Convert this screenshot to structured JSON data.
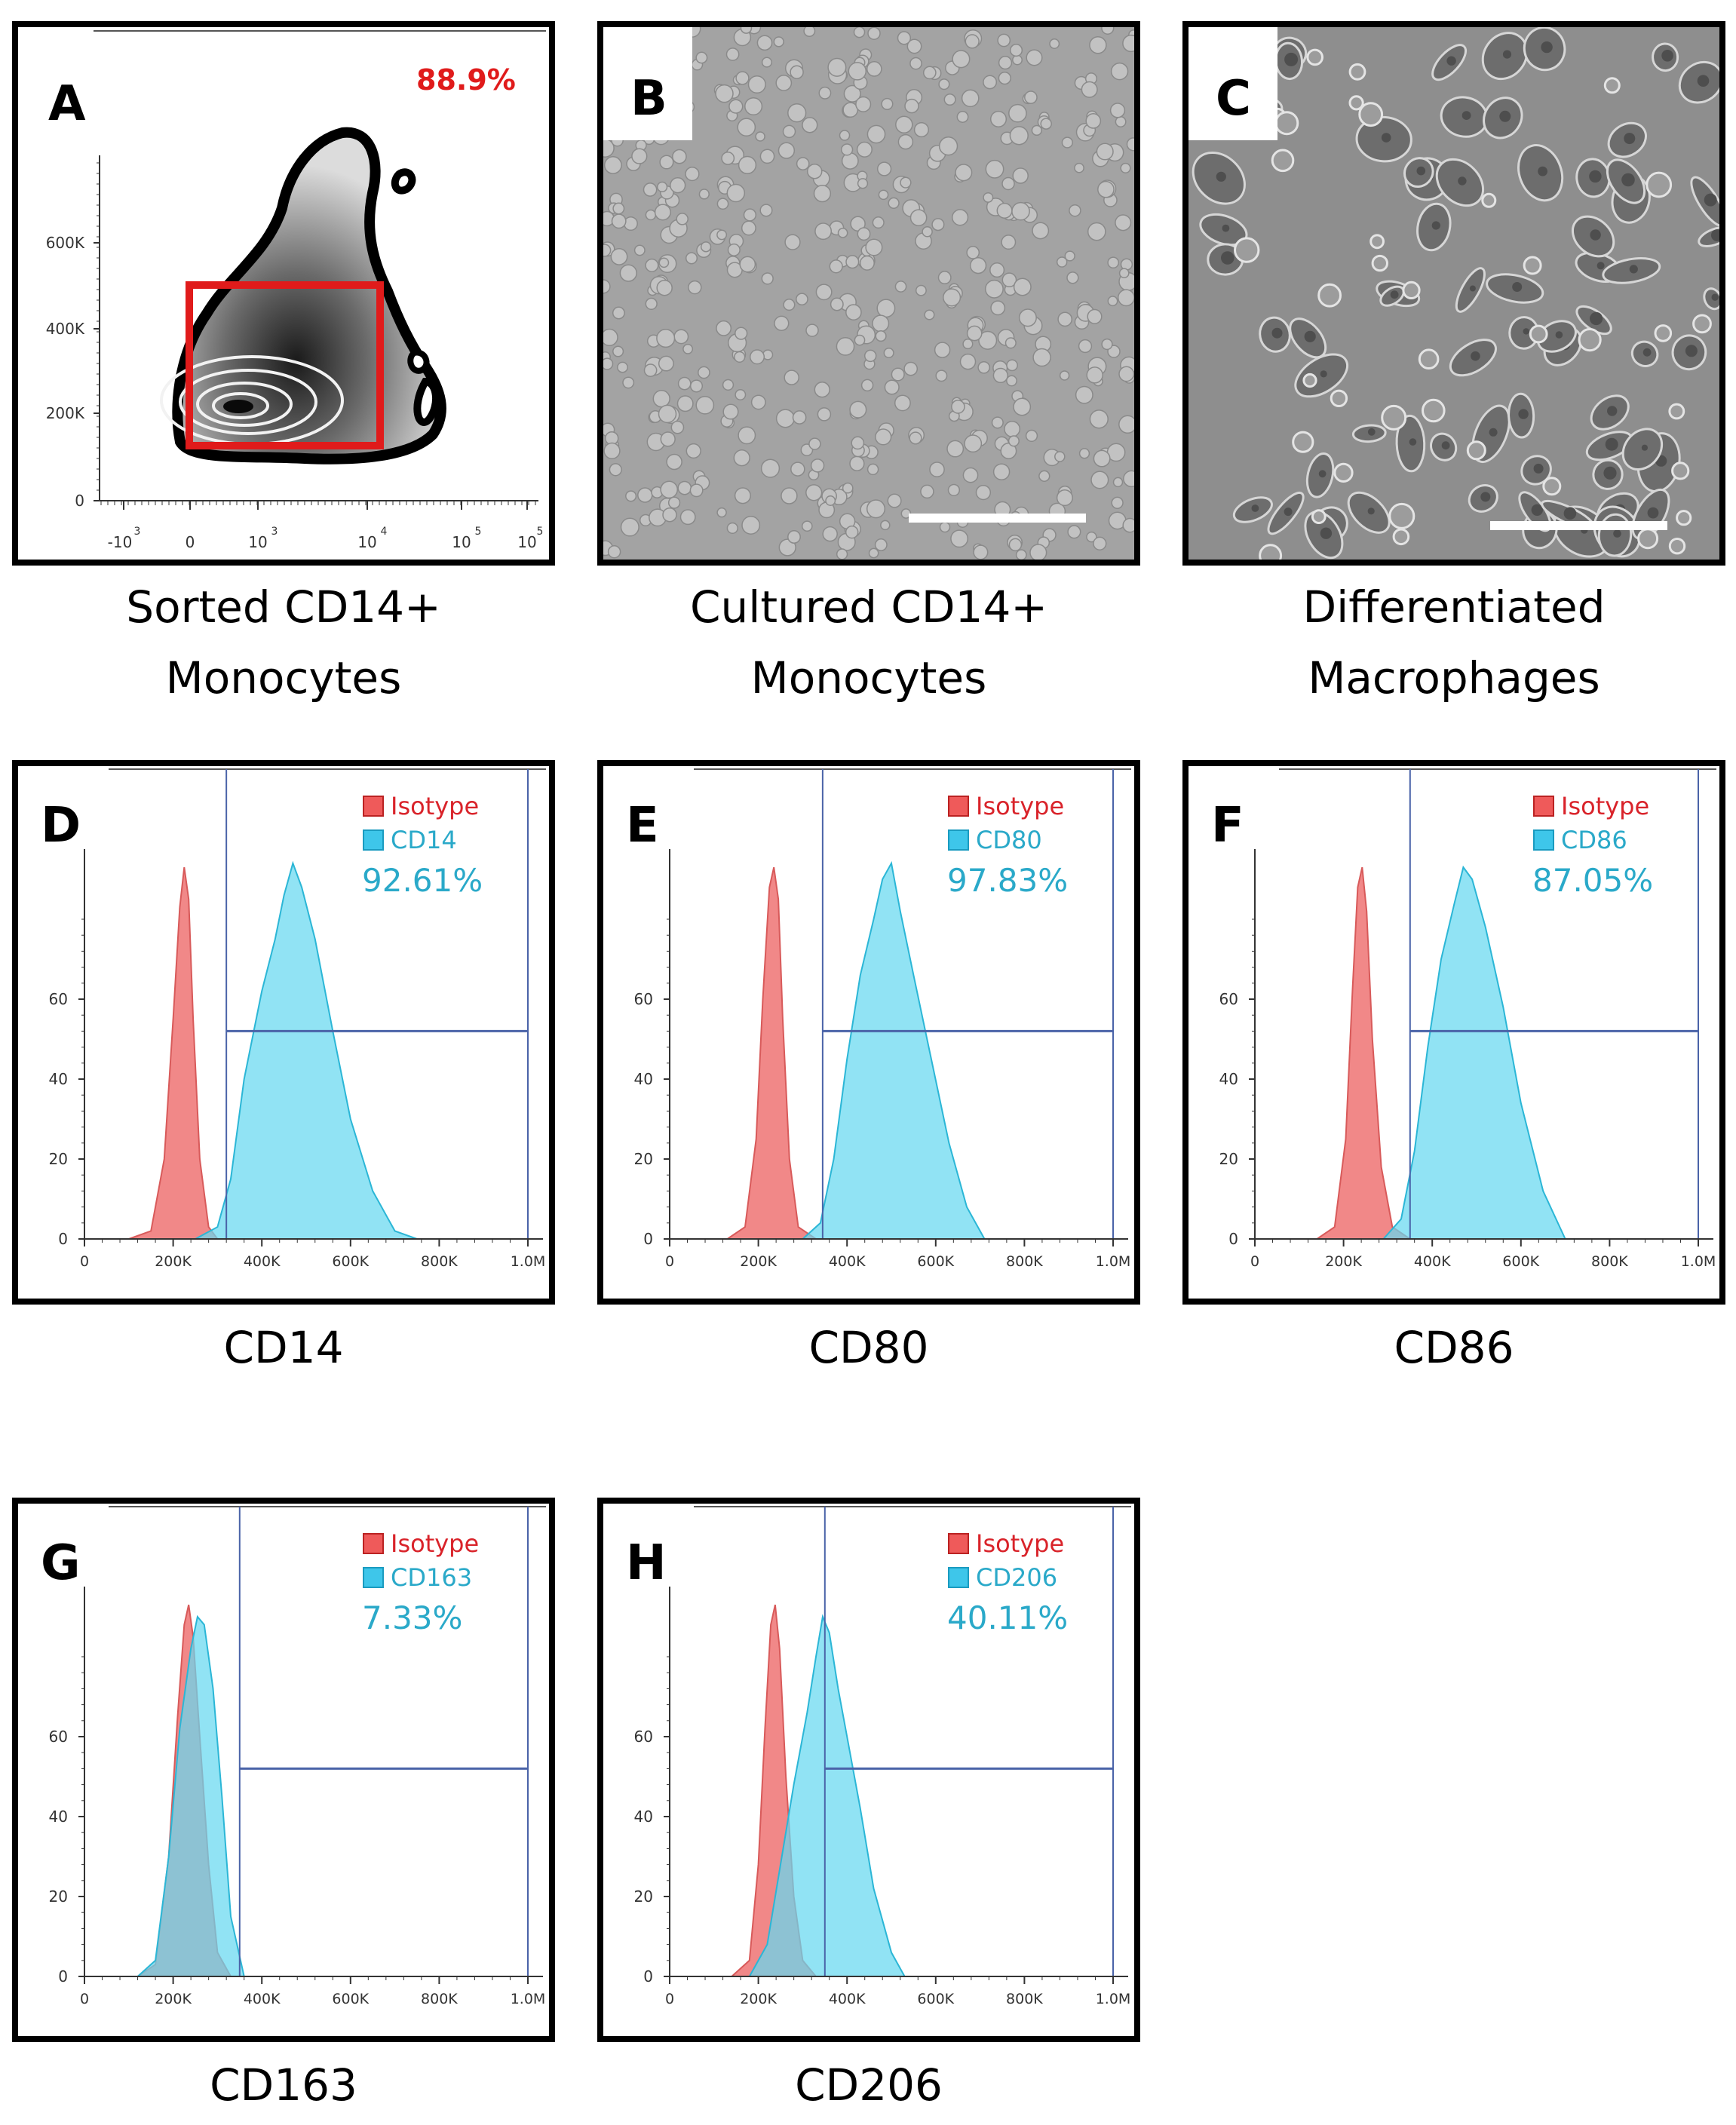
{
  "panels": {
    "A": {
      "letter": "A",
      "percent": "88.9%",
      "caption_line1": "Sorted CD14+",
      "caption_line2": "Monocytes",
      "y_ticks": [
        "0",
        "200K",
        "400K",
        "600K"
      ],
      "x_ticks": [
        "-10",
        "3",
        "0",
        "10",
        "3",
        "10",
        "4",
        "10",
        "5",
        "10",
        "5"
      ]
    },
    "B": {
      "letter": "B",
      "caption_line1": "Cultured CD14+",
      "caption_line2": "Monocytes"
    },
    "C": {
      "letter": "C",
      "caption_line1": "Differentiated",
      "caption_line2": "Macrophages"
    }
  },
  "colors": {
    "isotype": "#f07b7b",
    "marker": "#67d8f0",
    "marker_line": "#2bb6d6",
    "gate": "#4a63a8",
    "pct": "#2aa9c9",
    "iso_text": "#d9232a",
    "red_gate": "#e01b1b"
  },
  "chart_data": [
    {
      "type": "area",
      "panel": "D",
      "title": "CD14",
      "legend": [
        "Isotype",
        "CD14"
      ],
      "percent": "92.61%",
      "x_ticks": [
        "0",
        "200K",
        "400K",
        "600K",
        "800K",
        "1.0M"
      ],
      "y_ticks": [
        "0",
        "20",
        "40",
        "60"
      ],
      "xlim": [
        0,
        1000000
      ],
      "ylim": [
        0,
        90
      ],
      "gate_x": 320000,
      "gate_y": 52,
      "series": [
        {
          "name": "Isotype",
          "x": [
            100000,
            150000,
            180000,
            200000,
            215000,
            225000,
            235000,
            245000,
            260000,
            280000,
            300000
          ],
          "values": [
            0,
            2,
            20,
            55,
            83,
            93,
            85,
            55,
            20,
            3,
            0
          ]
        },
        {
          "name": "CD14",
          "x": [
            250000,
            300000,
            330000,
            360000,
            400000,
            430000,
            450000,
            470000,
            490000,
            520000,
            560000,
            600000,
            650000,
            700000,
            750000
          ],
          "values": [
            0,
            3,
            15,
            40,
            62,
            75,
            86,
            94,
            88,
            75,
            52,
            30,
            12,
            2,
            0
          ]
        }
      ]
    },
    {
      "type": "area",
      "panel": "E",
      "title": "CD80",
      "legend": [
        "Isotype",
        "CD80"
      ],
      "percent": "97.83%",
      "x_ticks": [
        "0",
        "200K",
        "400K",
        "600K",
        "800K",
        "1.0M"
      ],
      "y_ticks": [
        "0",
        "20",
        "40",
        "60"
      ],
      "xlim": [
        0,
        1000000
      ],
      "ylim": [
        0,
        90
      ],
      "gate_x": 345000,
      "gate_y": 52,
      "series": [
        {
          "name": "Isotype",
          "x": [
            130000,
            170000,
            195000,
            210000,
            225000,
            235000,
            245000,
            255000,
            270000,
            290000,
            330000
          ],
          "values": [
            0,
            3,
            25,
            60,
            88,
            93,
            85,
            55,
            20,
            3,
            0
          ]
        },
        {
          "name": "CD80",
          "x": [
            300000,
            340000,
            370000,
            400000,
            430000,
            460000,
            480000,
            500000,
            520000,
            550000,
            590000,
            630000,
            670000,
            710000
          ],
          "values": [
            0,
            4,
            20,
            45,
            66,
            80,
            90,
            94,
            82,
            66,
            45,
            24,
            8,
            0
          ]
        }
      ]
    },
    {
      "type": "area",
      "panel": "F",
      "title": "CD86",
      "legend": [
        "Isotype",
        "CD86"
      ],
      "percent": "87.05%",
      "x_ticks": [
        "0",
        "200K",
        "400K",
        "600K",
        "800K",
        "1.0M"
      ],
      "y_ticks": [
        "0",
        "20",
        "40",
        "60"
      ],
      "xlim": [
        0,
        1000000
      ],
      "ylim": [
        0,
        90
      ],
      "gate_x": 350000,
      "gate_y": 52,
      "series": [
        {
          "name": "Isotype",
          "x": [
            140000,
            180000,
            205000,
            220000,
            232000,
            242000,
            252000,
            265000,
            285000,
            310000,
            350000
          ],
          "values": [
            0,
            3,
            25,
            62,
            88,
            93,
            82,
            50,
            18,
            3,
            0
          ]
        },
        {
          "name": "CD86",
          "x": [
            290000,
            330000,
            360000,
            390000,
            420000,
            450000,
            470000,
            490000,
            520000,
            560000,
            600000,
            650000,
            700000
          ],
          "values": [
            0,
            5,
            22,
            48,
            70,
            84,
            93,
            90,
            78,
            58,
            34,
            12,
            0
          ]
        }
      ]
    },
    {
      "type": "area",
      "panel": "G",
      "title": "CD163",
      "legend": [
        "Isotype",
        "CD163"
      ],
      "percent": "7.33%",
      "x_ticks": [
        "0",
        "200K",
        "400K",
        "600K",
        "800K",
        "1.0M"
      ],
      "y_ticks": [
        "0",
        "20",
        "40",
        "60"
      ],
      "xlim": [
        0,
        1000000
      ],
      "ylim": [
        0,
        90
      ],
      "gate_x": 350000,
      "gate_y": 52,
      "series": [
        {
          "name": "Isotype",
          "x": [
            120000,
            160000,
            190000,
            210000,
            225000,
            235000,
            245000,
            260000,
            280000,
            300000,
            330000
          ],
          "values": [
            0,
            3,
            30,
            65,
            88,
            93,
            85,
            60,
            28,
            6,
            0
          ]
        },
        {
          "name": "CD163",
          "x": [
            120000,
            160000,
            190000,
            215000,
            240000,
            255000,
            270000,
            290000,
            310000,
            330000,
            360000
          ],
          "values": [
            0,
            4,
            30,
            62,
            82,
            90,
            88,
            72,
            45,
            15,
            0
          ]
        }
      ]
    },
    {
      "type": "area",
      "panel": "H",
      "title": "CD206",
      "legend": [
        "Isotype",
        "CD206"
      ],
      "percent": "40.11%",
      "x_ticks": [
        "0",
        "200K",
        "400K",
        "600K",
        "800K",
        "1.0M"
      ],
      "y_ticks": [
        "0",
        "20",
        "40",
        "60"
      ],
      "xlim": [
        0,
        1000000
      ],
      "ylim": [
        0,
        90
      ],
      "gate_x": 350000,
      "gate_y": 52,
      "series": [
        {
          "name": "Isotype",
          "x": [
            140000,
            180000,
            200000,
            215000,
            228000,
            238000,
            248000,
            262000,
            280000,
            300000,
            330000
          ],
          "values": [
            0,
            4,
            28,
            62,
            88,
            93,
            82,
            50,
            20,
            4,
            0
          ]
        },
        {
          "name": "CD206",
          "x": [
            180000,
            220000,
            250000,
            280000,
            310000,
            330000,
            345000,
            360000,
            380000,
            400000,
            430000,
            460000,
            500000,
            530000
          ],
          "values": [
            0,
            8,
            28,
            48,
            66,
            80,
            90,
            86,
            72,
            60,
            42,
            22,
            6,
            0
          ]
        }
      ]
    }
  ]
}
